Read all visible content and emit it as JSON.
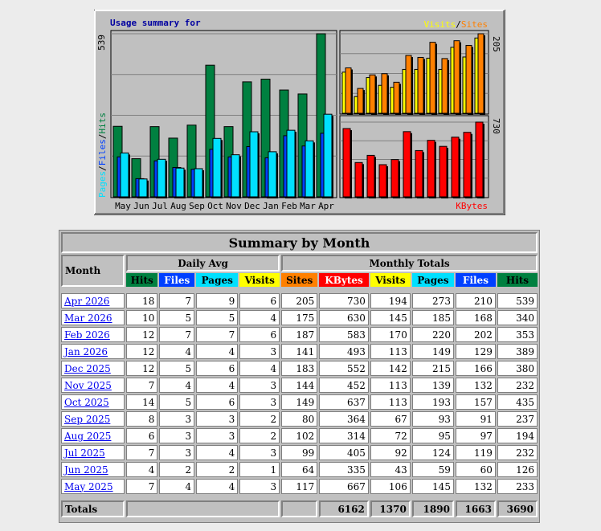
{
  "chart_panel": {
    "title": "Usage summary for",
    "legend_left": [
      "Pages",
      "/",
      "Files",
      "/",
      "Hits"
    ],
    "legend_top_right": [
      "Visits",
      "/",
      "Sites"
    ],
    "legend_bottom_right": "KBytes",
    "left_axis_max": "539",
    "right_top_axis_max": "205",
    "right_bottom_axis_max": "730",
    "colors": {
      "hits": "#008040",
      "files": "#0040ff",
      "pages": "#00e0ff",
      "visits": "#ffff00",
      "sites": "#ff8000",
      "kbytes": "#ff0000"
    }
  },
  "chart_data": {
    "type": "bar",
    "categories": [
      "May",
      "Jun",
      "Jul",
      "Aug",
      "Sep",
      "Oct",
      "Nov",
      "Dec",
      "Jan",
      "Feb",
      "Mar",
      "Apr"
    ],
    "series": [
      {
        "name": "Hits",
        "values": [
          233,
          126,
          232,
          194,
          237,
          435,
          232,
          380,
          389,
          353,
          340,
          539
        ]
      },
      {
        "name": "Files",
        "values": [
          132,
          60,
          119,
          97,
          91,
          157,
          132,
          166,
          129,
          202,
          168,
          210
        ]
      },
      {
        "name": "Pages",
        "values": [
          145,
          59,
          124,
          95,
          93,
          193,
          139,
          215,
          149,
          220,
          185,
          273
        ]
      },
      {
        "name": "Visits",
        "values": [
          106,
          43,
          92,
          72,
          67,
          113,
          113,
          142,
          113,
          170,
          145,
          194
        ]
      },
      {
        "name": "Sites",
        "values": [
          117,
          64,
          99,
          102,
          80,
          149,
          144,
          183,
          141,
          187,
          175,
          205
        ]
      },
      {
        "name": "KBytes",
        "values": [
          667,
          335,
          405,
          314,
          364,
          637,
          452,
          552,
          493,
          583,
          630,
          730
        ]
      }
    ]
  },
  "table": {
    "title": "Summary by Month",
    "month_header": "Month",
    "daily_avg_header": "Daily Avg",
    "monthly_totals_header": "Monthly Totals",
    "daily_cols": [
      {
        "label": "Hits",
        "color": "#008040"
      },
      {
        "label": "Files",
        "color": "#0040ff"
      },
      {
        "label": "Pages",
        "color": "#00e0ff"
      },
      {
        "label": "Visits",
        "color": "#ffff00"
      }
    ],
    "total_cols": [
      {
        "label": "Sites",
        "color": "#ff8000"
      },
      {
        "label": "KBytes",
        "color": "#ff0000"
      },
      {
        "label": "Visits",
        "color": "#ffff00"
      },
      {
        "label": "Pages",
        "color": "#00e0ff"
      },
      {
        "label": "Files",
        "color": "#0040ff"
      },
      {
        "label": "Hits",
        "color": "#008040"
      }
    ],
    "rows": [
      {
        "month": "Apr 2026",
        "d": [
          "18",
          "7",
          "9",
          "6"
        ],
        "t": [
          "205",
          "730",
          "194",
          "273",
          "210",
          "539"
        ]
      },
      {
        "month": "Mar 2026",
        "d": [
          "10",
          "5",
          "5",
          "4"
        ],
        "t": [
          "175",
          "630",
          "145",
          "185",
          "168",
          "340"
        ]
      },
      {
        "month": "Feb 2026",
        "d": [
          "12",
          "7",
          "7",
          "6"
        ],
        "t": [
          "187",
          "583",
          "170",
          "220",
          "202",
          "353"
        ]
      },
      {
        "month": "Jan 2026",
        "d": [
          "12",
          "4",
          "4",
          "3"
        ],
        "t": [
          "141",
          "493",
          "113",
          "149",
          "129",
          "389"
        ]
      },
      {
        "month": "Dec 2025",
        "d": [
          "12",
          "5",
          "6",
          "4"
        ],
        "t": [
          "183",
          "552",
          "142",
          "215",
          "166",
          "380"
        ]
      },
      {
        "month": "Nov 2025",
        "d": [
          "7",
          "4",
          "4",
          "3"
        ],
        "t": [
          "144",
          "452",
          "113",
          "139",
          "132",
          "232"
        ]
      },
      {
        "month": "Oct 2025",
        "d": [
          "14",
          "5",
          "6",
          "3"
        ],
        "t": [
          "149",
          "637",
          "113",
          "193",
          "157",
          "435"
        ]
      },
      {
        "month": "Sep 2025",
        "d": [
          "8",
          "3",
          "3",
          "2"
        ],
        "t": [
          "80",
          "364",
          "67",
          "93",
          "91",
          "237"
        ]
      },
      {
        "month": "Aug 2025",
        "d": [
          "6",
          "3",
          "3",
          "2"
        ],
        "t": [
          "102",
          "314",
          "72",
          "95",
          "97",
          "194"
        ]
      },
      {
        "month": "Jul 2025",
        "d": [
          "7",
          "3",
          "4",
          "3"
        ],
        "t": [
          "99",
          "405",
          "92",
          "124",
          "119",
          "232"
        ]
      },
      {
        "month": "Jun 2025",
        "d": [
          "4",
          "2",
          "2",
          "1"
        ],
        "t": [
          "64",
          "335",
          "43",
          "59",
          "60",
          "126"
        ]
      },
      {
        "month": "May 2025",
        "d": [
          "7",
          "4",
          "4",
          "3"
        ],
        "t": [
          "117",
          "667",
          "106",
          "145",
          "132",
          "233"
        ]
      }
    ],
    "totals": {
      "label": "Totals",
      "values": [
        "6162",
        "1370",
        "1890",
        "1663",
        "3690"
      ]
    }
  }
}
